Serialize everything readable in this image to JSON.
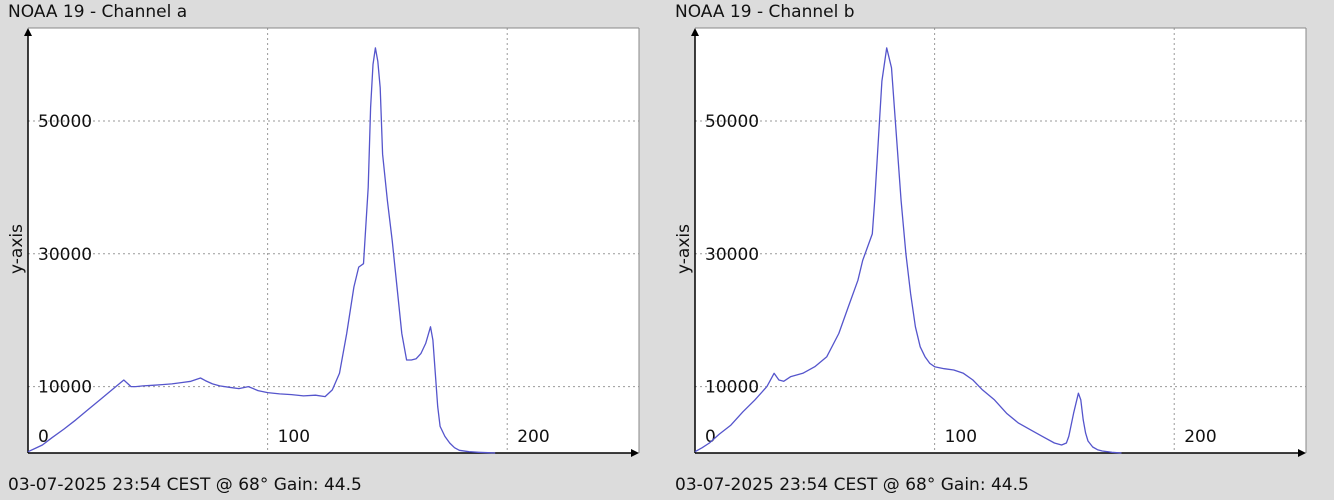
{
  "chart_data": [
    {
      "type": "line",
      "title": "NOAA 19 - Channel a",
      "subtitle": "03-07-2025 23:54 CEST @ 68° Gain: 44.5",
      "xlabel": "",
      "ylabel": "y-axis",
      "x_ticks": [
        0,
        100,
        200
      ],
      "y_ticks": [
        10000,
        30000,
        50000
      ],
      "xlim": [
        0,
        255
      ],
      "ylim": [
        0,
        64000
      ],
      "grid": true,
      "color": "#5555cc",
      "series": [
        {
          "x": [
            0,
            3,
            6,
            10,
            15,
            20,
            25,
            30,
            35,
            40,
            43,
            45,
            48,
            52,
            56,
            60,
            64,
            68,
            72,
            74,
            77,
            80,
            84,
            88,
            92,
            96,
            100,
            105,
            110,
            115,
            120,
            124,
            127,
            130,
            133,
            136,
            138,
            140,
            142,
            143,
            144,
            145,
            146,
            147,
            148,
            150,
            152,
            154,
            156,
            158,
            160,
            162,
            164,
            166,
            168,
            169,
            170,
            171,
            172,
            174,
            176,
            178,
            180,
            184,
            188,
            192,
            195
          ],
          "y": [
            200,
            700,
            1200,
            2300,
            3600,
            5000,
            6500,
            8000,
            9500,
            11000,
            10000,
            10000,
            10100,
            10200,
            10300,
            10400,
            10600,
            10800,
            11300,
            10900,
            10400,
            10100,
            9900,
            9700,
            10000,
            9400,
            9100,
            8900,
            8800,
            8600,
            8700,
            8500,
            9500,
            12000,
            18000,
            25000,
            28000,
            28500,
            40000,
            52000,
            58500,
            61000,
            59000,
            55000,
            45000,
            38000,
            32000,
            25000,
            18000,
            14000,
            14000,
            14200,
            15000,
            16500,
            19000,
            17000,
            12000,
            7000,
            4000,
            2500,
            1500,
            800,
            400,
            200,
            100,
            50,
            0
          ]
        }
      ]
    },
    {
      "type": "line",
      "title": "NOAA 19 - Channel b",
      "subtitle": "03-07-2025 23:54 CEST @ 68° Gain: 44.5",
      "xlabel": "",
      "ylabel": "y-axis",
      "x_ticks": [
        0,
        100,
        200
      ],
      "y_ticks": [
        10000,
        30000,
        50000
      ],
      "xlim": [
        0,
        255
      ],
      "ylim": [
        0,
        64000
      ],
      "grid": true,
      "color": "#5555cc",
      "series": [
        {
          "x": [
            0,
            3,
            6,
            10,
            15,
            20,
            25,
            30,
            33,
            35,
            37,
            40,
            45,
            50,
            55,
            60,
            64,
            68,
            70,
            72,
            74,
            75,
            76,
            77,
            78,
            80,
            82,
            84,
            86,
            88,
            90,
            92,
            94,
            96,
            98,
            100,
            104,
            108,
            112,
            116,
            120,
            125,
            130,
            135,
            140,
            145,
            150,
            153,
            155,
            156,
            158,
            160,
            161,
            162,
            163,
            164,
            166,
            168,
            170,
            174,
            178
          ],
          "y": [
            200,
            800,
            1500,
            2800,
            4200,
            6200,
            8000,
            10000,
            12000,
            11000,
            10800,
            11500,
            12000,
            13000,
            14500,
            18000,
            22000,
            26000,
            29000,
            31000,
            33000,
            38000,
            44000,
            50000,
            56000,
            61000,
            58000,
            48000,
            38000,
            30000,
            24000,
            19000,
            16000,
            14500,
            13500,
            13000,
            12700,
            12500,
            12000,
            11000,
            9500,
            8000,
            6000,
            4500,
            3500,
            2500,
            1500,
            1200,
            1500,
            2500,
            6000,
            9000,
            8000,
            5000,
            3000,
            1800,
            900,
            500,
            300,
            100,
            0
          ]
        }
      ]
    }
  ]
}
